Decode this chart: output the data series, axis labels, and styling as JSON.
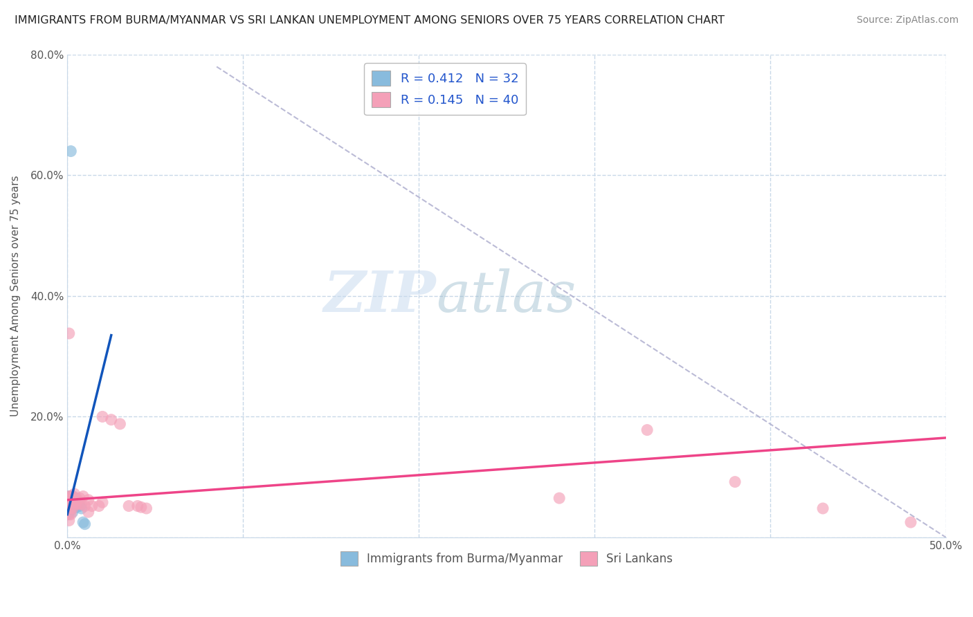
{
  "title": "IMMIGRANTS FROM BURMA/MYANMAR VS SRI LANKAN UNEMPLOYMENT AMONG SENIORS OVER 75 YEARS CORRELATION CHART",
  "source": "Source: ZipAtlas.com",
  "ylabel": "Unemployment Among Seniors over 75 years",
  "xlim": [
    0.0,
    0.5
  ],
  "ylim": [
    0.0,
    0.8
  ],
  "xticks": [
    0.0,
    0.1,
    0.2,
    0.3,
    0.4,
    0.5
  ],
  "xticklabels": [
    "0.0%",
    "",
    "",
    "",
    "",
    "50.0%"
  ],
  "yticks": [
    0.0,
    0.2,
    0.4,
    0.6,
    0.8
  ],
  "yticklabels": [
    "",
    "20.0%",
    "40.0%",
    "60.0%",
    "80.0%"
  ],
  "legend_entries": [
    "Immigrants from Burma/Myanmar",
    "Sri Lankans"
  ],
  "R_blue": 0.412,
  "N_blue": 32,
  "R_pink": 0.145,
  "N_pink": 40,
  "blue_color": "#88bbdd",
  "pink_color": "#f4a0b8",
  "blue_line_color": "#1155bb",
  "pink_line_color": "#ee4488",
  "watermark_zip": "ZIP",
  "watermark_atlas": "atlas",
  "background_color": "#ffffff",
  "grid_color": "#c8d8e8",
  "blue_scatter": [
    [
      0.0,
      0.038
    ],
    [
      0.001,
      0.065
    ],
    [
      0.001,
      0.065
    ],
    [
      0.001,
      0.055
    ],
    [
      0.001,
      0.068
    ],
    [
      0.001,
      0.058
    ],
    [
      0.001,
      0.05
    ],
    [
      0.001,
      0.045
    ],
    [
      0.001,
      0.042
    ],
    [
      0.002,
      0.062
    ],
    [
      0.002,
      0.068
    ],
    [
      0.002,
      0.06
    ],
    [
      0.002,
      0.055
    ],
    [
      0.002,
      0.052
    ],
    [
      0.002,
      0.048
    ],
    [
      0.002,
      0.64
    ],
    [
      0.003,
      0.068
    ],
    [
      0.003,
      0.065
    ],
    [
      0.003,
      0.055
    ],
    [
      0.003,
      0.052
    ],
    [
      0.003,
      0.048
    ],
    [
      0.003,
      0.042
    ],
    [
      0.004,
      0.065
    ],
    [
      0.004,
      0.058
    ],
    [
      0.004,
      0.052
    ],
    [
      0.005,
      0.058
    ],
    [
      0.005,
      0.05
    ],
    [
      0.006,
      0.055
    ],
    [
      0.007,
      0.052
    ],
    [
      0.008,
      0.048
    ],
    [
      0.009,
      0.025
    ],
    [
      0.01,
      0.022
    ]
  ],
  "pink_scatter": [
    [
      0.001,
      0.068
    ],
    [
      0.001,
      0.058
    ],
    [
      0.001,
      0.048
    ],
    [
      0.001,
      0.038
    ],
    [
      0.001,
      0.028
    ],
    [
      0.001,
      0.338
    ],
    [
      0.002,
      0.068
    ],
    [
      0.002,
      0.058
    ],
    [
      0.002,
      0.048
    ],
    [
      0.002,
      0.038
    ],
    [
      0.003,
      0.068
    ],
    [
      0.003,
      0.058
    ],
    [
      0.003,
      0.048
    ],
    [
      0.004,
      0.072
    ],
    [
      0.004,
      0.058
    ],
    [
      0.005,
      0.065
    ],
    [
      0.005,
      0.055
    ],
    [
      0.006,
      0.062
    ],
    [
      0.007,
      0.065
    ],
    [
      0.007,
      0.055
    ],
    [
      0.008,
      0.055
    ],
    [
      0.009,
      0.068
    ],
    [
      0.01,
      0.052
    ],
    [
      0.012,
      0.062
    ],
    [
      0.012,
      0.042
    ],
    [
      0.014,
      0.052
    ],
    [
      0.018,
      0.052
    ],
    [
      0.02,
      0.2
    ],
    [
      0.02,
      0.058
    ],
    [
      0.025,
      0.195
    ],
    [
      0.03,
      0.188
    ],
    [
      0.035,
      0.052
    ],
    [
      0.04,
      0.052
    ],
    [
      0.042,
      0.05
    ],
    [
      0.045,
      0.048
    ],
    [
      0.28,
      0.065
    ],
    [
      0.33,
      0.178
    ],
    [
      0.38,
      0.092
    ],
    [
      0.43,
      0.048
    ],
    [
      0.48,
      0.025
    ]
  ],
  "diag_line_x": [
    0.085,
    0.5
  ],
  "diag_line_y": [
    0.78,
    0.0
  ],
  "blue_trend_x": [
    0.0,
    0.025
  ],
  "blue_trend_y_start": 0.038,
  "blue_trend_y_end": 0.335,
  "pink_trend_x": [
    0.0,
    0.5
  ],
  "pink_trend_y_start": 0.062,
  "pink_trend_y_end": 0.165
}
